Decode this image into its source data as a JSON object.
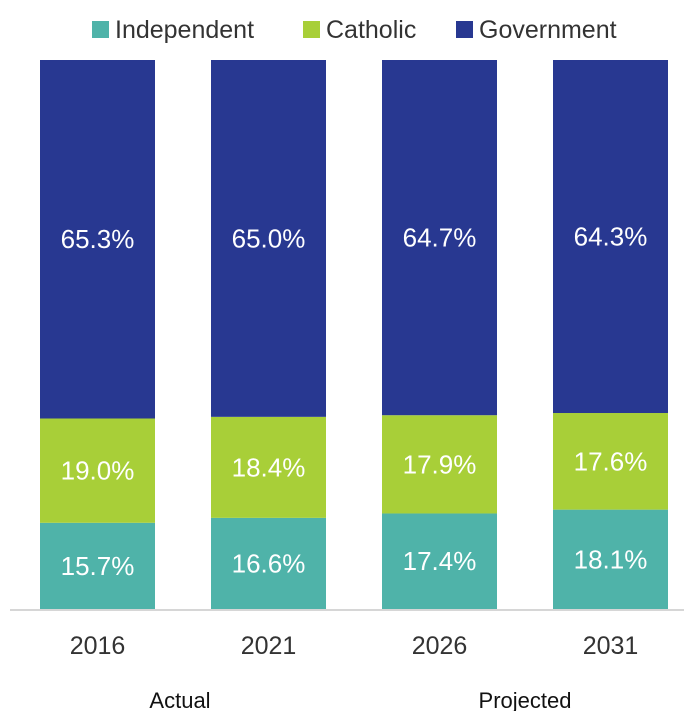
{
  "chart_data": {
    "type": "bar",
    "stacked": true,
    "normalized_percent": true,
    "categories": [
      "2016",
      "2021",
      "2026",
      "2031"
    ],
    "series": [
      {
        "name": "Independent",
        "color": "#4fb3a9",
        "values": [
          15.7,
          16.6,
          17.4,
          18.1
        ],
        "labels": [
          "15.7%",
          "16.6%",
          "17.4%",
          "18.1%"
        ]
      },
      {
        "name": "Catholic",
        "color": "#a8cf38",
        "values": [
          19.0,
          18.4,
          17.9,
          17.6
        ],
        "labels": [
          "19.0%",
          "18.4%",
          "17.9%",
          "17.6%"
        ]
      },
      {
        "name": "Government",
        "color": "#283891",
        "values": [
          65.3,
          65.0,
          64.7,
          64.3
        ],
        "labels": [
          "65.3%",
          "65.0%",
          "64.7%",
          "64.3%"
        ]
      }
    ],
    "group_labels": [
      "Actual",
      "Projected"
    ],
    "legend_position": "top-center",
    "ylim": [
      0,
      100
    ],
    "grid": false
  }
}
